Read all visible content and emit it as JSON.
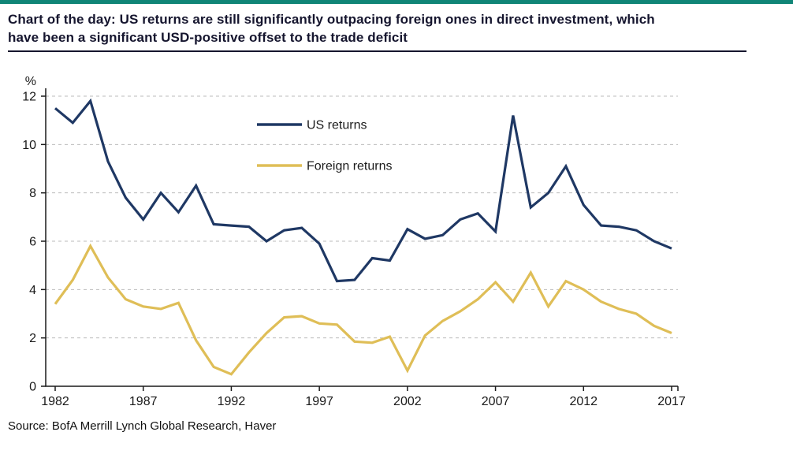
{
  "header": {
    "title_line1": "Chart of the day: US returns are still significantly outpacing foreign ones in direct investment, which",
    "title_line2": "have been a significant USD-positive offset to the trade deficit"
  },
  "footer": {
    "source": "Source: BofA Merrill Lynch Global Research, Haver"
  },
  "colors": {
    "accent_bar": "#108577",
    "title": "#15152e",
    "axis": "#1a1a1a",
    "gridline": "#bbbbbb",
    "us_line": "#1f3864",
    "foreign_line": "#dfbe57",
    "legend_text": "#1b1b1b"
  },
  "chart_data": {
    "type": "line",
    "title": "Chart of the day: US returns are still significantly outpacing foreign ones in direct investment, which have been a significant USD-positive offset to the trade deficit",
    "xlabel": "",
    "ylabel": "%",
    "ylim": [
      0,
      12
    ],
    "yticks": [
      0,
      2,
      4,
      6,
      8,
      10,
      12
    ],
    "x_range": [
      1982,
      2017
    ],
    "x_ticks": [
      1982,
      1987,
      1992,
      1997,
      2002,
      2007,
      2012,
      2017
    ],
    "grid": "dashed-horizontal",
    "legend_position": "inside-upper-center",
    "years": [
      1982,
      1983,
      1984,
      1985,
      1986,
      1987,
      1988,
      1989,
      1990,
      1991,
      1992,
      1993,
      1994,
      1995,
      1996,
      1997,
      1998,
      1999,
      2000,
      2001,
      2002,
      2003,
      2004,
      2005,
      2006,
      2007,
      2008,
      2009,
      2010,
      2011,
      2012,
      2013,
      2014,
      2015,
      2016,
      2017
    ],
    "series": [
      {
        "name": "US returns",
        "color": "#1f3864",
        "values": [
          11.5,
          10.9,
          11.8,
          9.3,
          7.8,
          6.9,
          8.0,
          7.2,
          8.3,
          6.7,
          6.65,
          6.6,
          6.0,
          6.45,
          6.55,
          5.9,
          4.35,
          4.4,
          5.3,
          5.2,
          6.5,
          6.1,
          6.25,
          6.9,
          7.15,
          6.4,
          11.2,
          7.4,
          8.0,
          9.1,
          7.5,
          6.65,
          6.6,
          6.45,
          6.0,
          5.7
        ]
      },
      {
        "name": "Foreign returns",
        "color": "#dfbe57",
        "values": [
          3.4,
          4.4,
          5.8,
          4.5,
          3.6,
          3.3,
          3.2,
          3.45,
          1.9,
          0.8,
          0.5,
          1.4,
          2.2,
          2.85,
          2.9,
          2.6,
          2.55,
          1.85,
          1.8,
          2.05,
          0.65,
          2.1,
          2.7,
          3.1,
          3.6,
          4.3,
          3.5,
          4.7,
          3.3,
          4.35,
          4.0,
          3.5,
          3.2,
          3.0,
          2.5,
          2.2
        ]
      }
    ]
  }
}
